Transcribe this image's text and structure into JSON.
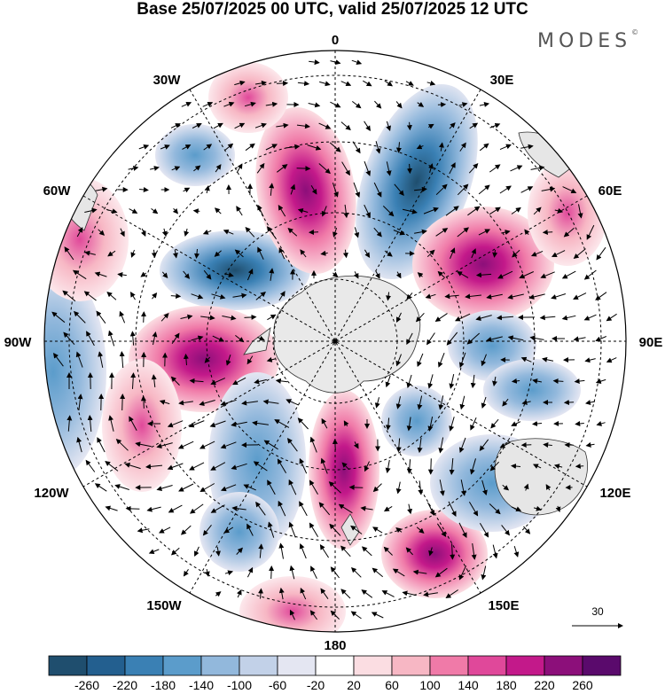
{
  "header": {
    "title": "Base 25/07/2025 00 UTC, valid 25/07/2025 12 UTC",
    "brand": "MODES",
    "brand_mark": "©"
  },
  "map": {
    "projection": "south-polar-stereographic",
    "longitude_labels": [
      "0",
      "30E",
      "60E",
      "90E",
      "120E",
      "150E",
      "180",
      "150W",
      "120W",
      "90W",
      "60W",
      "30W"
    ],
    "reference_vector": "30",
    "field_anomalies": [
      {
        "name": "neg-atlantic-30E",
        "sign": "negative",
        "level": -240
      },
      {
        "name": "neg-weddell-60W",
        "sign": "negative",
        "level": -240
      },
      {
        "name": "neg-south-pacific-140W",
        "sign": "negative",
        "level": -140
      },
      {
        "name": "neg-indian-ocean-90E",
        "sign": "negative",
        "level": -140
      },
      {
        "name": "neg-south-australia-120E",
        "sign": "negative",
        "level": -140
      },
      {
        "name": "neg-ross-sea-160W",
        "sign": "negative",
        "level": -100
      },
      {
        "name": "pos-south-atlantic-10W",
        "sign": "positive",
        "level": 200
      },
      {
        "name": "pos-indian-ocean-55E",
        "sign": "positive",
        "level": 220
      },
      {
        "name": "pos-bellingshausen-100W",
        "sign": "positive",
        "level": 220
      },
      {
        "name": "pos-tasman-150E",
        "sign": "positive",
        "level": 220
      },
      {
        "name": "pos-ross-sea-175E",
        "sign": "positive",
        "level": 200
      },
      {
        "name": "pos-pacific-115W",
        "sign": "positive",
        "level": 180
      }
    ]
  },
  "colorbar": {
    "ticks": [
      "-260",
      "-220",
      "-180",
      "-140",
      "-100",
      "-60",
      "-20",
      "20",
      "60",
      "100",
      "140",
      "180",
      "220",
      "260"
    ],
    "colors": [
      "#1f4e6e",
      "#235f8f",
      "#3a80b4",
      "#5b9ccb",
      "#92b8dc",
      "#c2d1e8",
      "#e4e6f2",
      "#ffffff",
      "#fbdde2",
      "#f7b7c4",
      "#f07aa8",
      "#e0489a",
      "#c3198a",
      "#8c0f7a",
      "#5a0a6c"
    ]
  }
}
